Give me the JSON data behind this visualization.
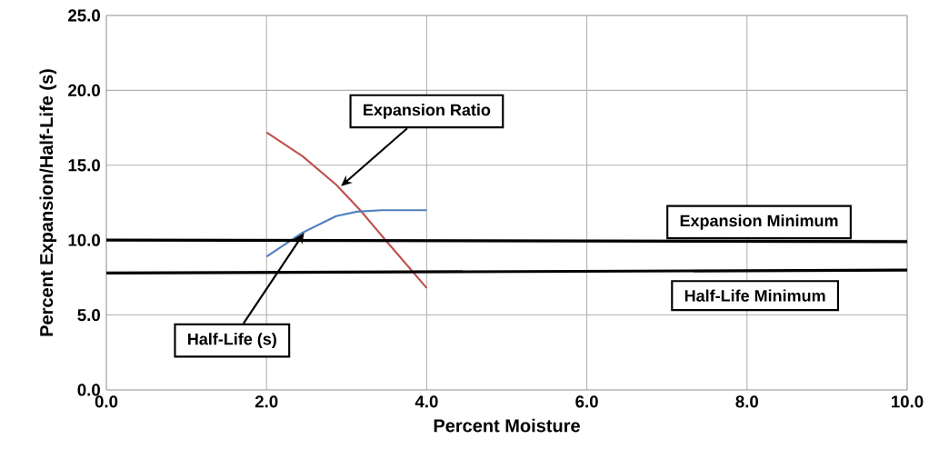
{
  "chart_data": {
    "type": "line",
    "xlabel": "Percent Moisture",
    "ylabel": "Percent Expansion/Half-Life (s)",
    "xlim": [
      0,
      10
    ],
    "ylim": [
      0,
      25
    ],
    "xticks": [
      {
        "value": 0,
        "label": "0.0"
      },
      {
        "value": 2,
        "label": "2.0"
      },
      {
        "value": 4,
        "label": "4.0"
      },
      {
        "value": 6,
        "label": "6.0"
      },
      {
        "value": 8,
        "label": "8.0"
      },
      {
        "value": 10,
        "label": "10.0"
      }
    ],
    "yticks": [
      {
        "value": 0,
        "label": "0.0"
      },
      {
        "value": 5,
        "label": "5.0"
      },
      {
        "value": 10,
        "label": "10.0"
      },
      {
        "value": 15,
        "label": "15.0"
      },
      {
        "value": 20,
        "label": "20.0"
      },
      {
        "value": 25,
        "label": "25.0"
      }
    ],
    "grid": true,
    "marker": "none",
    "line_style": "solid",
    "series": [
      {
        "color": "#c0504d",
        "x": [
          2.0,
          2.45,
          2.87,
          3.17,
          3.47,
          4.0
        ],
        "values": [
          17.2,
          15.6,
          13.7,
          12.0,
          10.1,
          6.8
        ]
      },
      {
        "color": "#4f81bd",
        "x": [
          2.0,
          2.45,
          2.87,
          3.13,
          3.44,
          4.0
        ],
        "values": [
          8.9,
          10.5,
          11.6,
          11.9,
          12.0,
          12.0
        ]
      },
      {
        "color": "#000000",
        "x": [
          0,
          10
        ],
        "values": [
          10.0,
          9.9
        ]
      },
      {
        "color": "#000000",
        "x": [
          0,
          10
        ],
        "values": [
          7.8,
          8.0
        ]
      }
    ],
    "annotations": [
      {
        "text": "Expansion Ratio",
        "x": 2.93,
        "y": 13.6
      },
      {
        "text": "Half-Life (s)",
        "x": 2.47,
        "y": 10.5
      },
      {
        "text": "Expansion Minimum",
        "x": 8.15,
        "y": 9.9
      },
      {
        "text": "Half-Life Minimum",
        "x": 8.1,
        "y": 7.9
      }
    ]
  }
}
